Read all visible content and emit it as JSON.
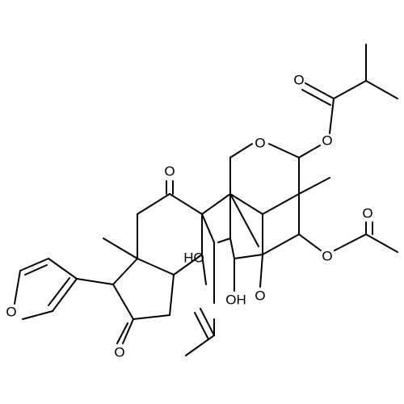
{
  "atoms": [
    {
      "label": "O"
    },
    {
      "label": "O"
    },
    {
      "label": "O"
    },
    {
      "label": "O"
    },
    {
      "label": "O"
    },
    {
      "label": "O"
    },
    {
      "label": "HO"
    },
    {
      "label": "OH"
    },
    {
      "label": "O"
    },
    {
      "label": "O"
    },
    {
      "label": "O"
    }
  ]
}
